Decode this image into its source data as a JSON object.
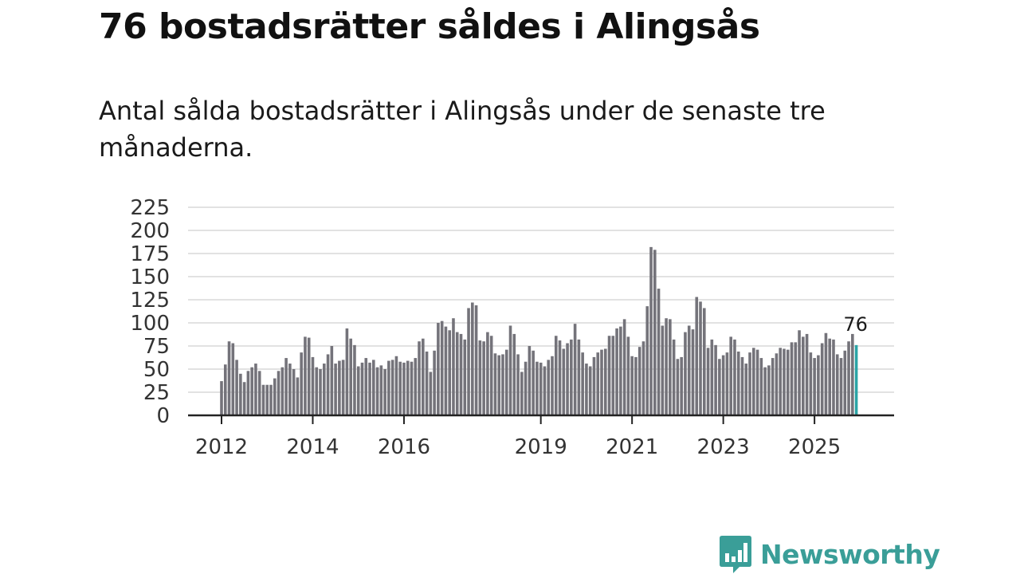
{
  "title": "76 bostadsrätter såldes i Alingsås",
  "subtitle": "Antal sålda bostadsrätter i Alingsås under de senaste tre månaderna.",
  "brand": {
    "name": "Newsworthy",
    "color": "#3a9e98",
    "icon": "newsworthy-logo-icon"
  },
  "chart_data": {
    "type": "bar",
    "title": "",
    "xlabel": "",
    "ylabel": "",
    "ylim": [
      0,
      225
    ],
    "yticks": [
      "0",
      "25",
      "50",
      "75",
      "100",
      "125",
      "150",
      "175",
      "200",
      "225"
    ],
    "grid": true,
    "bar_color": "#74737a",
    "highlight_color": "#2aa4a6",
    "x_ticks": [
      {
        "label": "2012",
        "index": 0
      },
      {
        "label": "2014",
        "index": 24
      },
      {
        "label": "2016",
        "index": 48
      },
      {
        "label": "2019",
        "index": 84
      },
      {
        "label": "2021",
        "index": 108
      },
      {
        "label": "2023",
        "index": 132
      },
      {
        "label": "2025",
        "index": 156
      }
    ],
    "annotation": {
      "label": "76",
      "index": 167
    },
    "values": [
      37,
      55,
      80,
      78,
      60,
      45,
      36,
      48,
      52,
      56,
      48,
      33,
      33,
      33,
      40,
      48,
      52,
      62,
      56,
      50,
      41,
      68,
      85,
      84,
      63,
      52,
      50,
      56,
      66,
      75,
      56,
      59,
      60,
      94,
      83,
      76,
      53,
      57,
      62,
      57,
      60,
      52,
      54,
      50,
      59,
      60,
      64,
      58,
      57,
      59,
      58,
      62,
      80,
      83,
      69,
      47,
      70,
      100,
      102,
      96,
      92,
      105,
      90,
      88,
      82,
      116,
      122,
      119,
      81,
      80,
      90,
      86,
      67,
      65,
      66,
      71,
      97,
      88,
      66,
      47,
      58,
      75,
      70,
      58,
      57,
      53,
      60,
      64,
      86,
      81,
      72,
      78,
      82,
      99,
      82,
      68,
      56,
      53,
      63,
      68,
      71,
      72,
      86,
      86,
      94,
      96,
      104,
      85,
      64,
      63,
      74,
      80,
      118,
      182,
      179,
      137,
      97,
      105,
      104,
      82,
      61,
      63,
      90,
      97,
      93,
      128,
      123,
      116,
      73,
      82,
      76,
      61,
      65,
      68,
      85,
      82,
      69,
      63,
      56,
      68,
      73,
      71,
      62,
      52,
      54,
      62,
      67,
      73,
      72,
      71,
      79,
      79,
      92,
      85,
      88,
      68,
      62,
      65,
      78,
      89,
      83,
      82,
      66,
      62,
      70,
      80,
      88,
      76
    ]
  }
}
